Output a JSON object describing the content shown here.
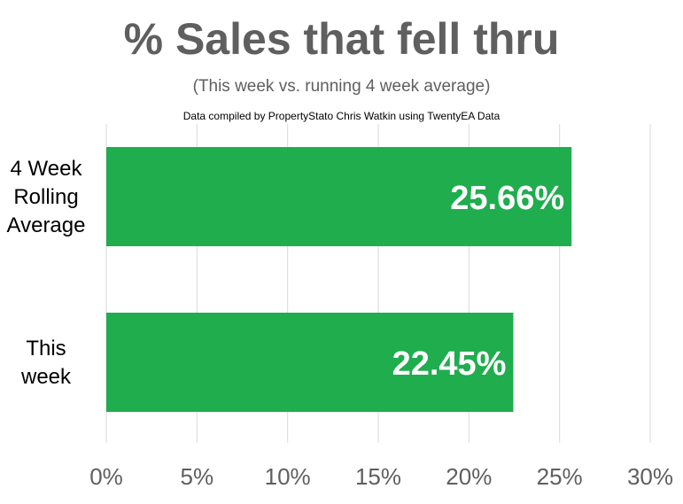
{
  "chart_data": {
    "type": "bar",
    "orientation": "horizontal",
    "title": "% Sales that fell thru",
    "subtitle": "(This week vs. running 4 week average)",
    "credit": "Data compiled by PropertyStato Chris Watkin using TwentyEA Data",
    "categories": [
      [
        "4 Week",
        "Rolling",
        "Average"
      ],
      [
        "This",
        "week"
      ]
    ],
    "values": [
      25.66,
      22.45
    ],
    "data_labels": [
      "25.66%",
      "22.45%"
    ],
    "xlim": [
      0,
      30
    ],
    "xticks": [
      0,
      5,
      10,
      15,
      20,
      25,
      30
    ],
    "xtick_labels": [
      "0%",
      "5%",
      "10%",
      "15%",
      "20%",
      "25%",
      "30%"
    ],
    "grid": true,
    "legend": "none",
    "colors": {
      "bar": "#1fad4e",
      "grid": "#d9d9d9",
      "title": "#5f5f5f",
      "tick_label": "#5f5f5f",
      "category_label": "#000000",
      "data_label": "#ffffff"
    }
  }
}
